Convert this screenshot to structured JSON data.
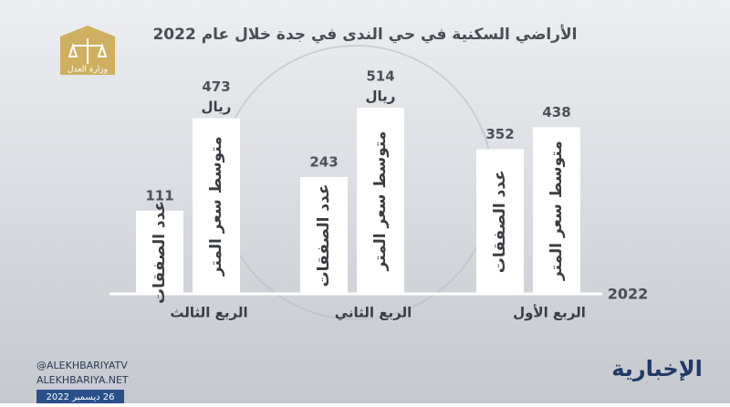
{
  "chart_data": {
    "type": "grouped-bar",
    "title": "الأراضي السكنية في حي الندى في جدة خلال عام 2022",
    "axis_label": "2022",
    "categories": [
      "الربع الأول",
      "الربع الثاني",
      "الربع الثالث"
    ],
    "series": [
      {
        "name": "عدد الصفقات",
        "color": "#ffffff",
        "values": [
          352,
          243,
          111
        ]
      },
      {
        "name": "متوسط سعر المتر",
        "color": "#ffffff",
        "values": [
          438,
          514,
          473
        ]
      }
    ],
    "annotations": [
      {
        "text": "ريال",
        "category": "الربع الثاني"
      },
      {
        "text": "ريال",
        "category": "الربع الثالث"
      }
    ]
  },
  "overlay": {
    "logo_text": "وزارة العدل",
    "handle": "@ALEKHBARIYATV",
    "website": "ALEKHBARIYA.NET",
    "date": "26 ديسمبر 2022",
    "brand": "الإخبارية"
  }
}
